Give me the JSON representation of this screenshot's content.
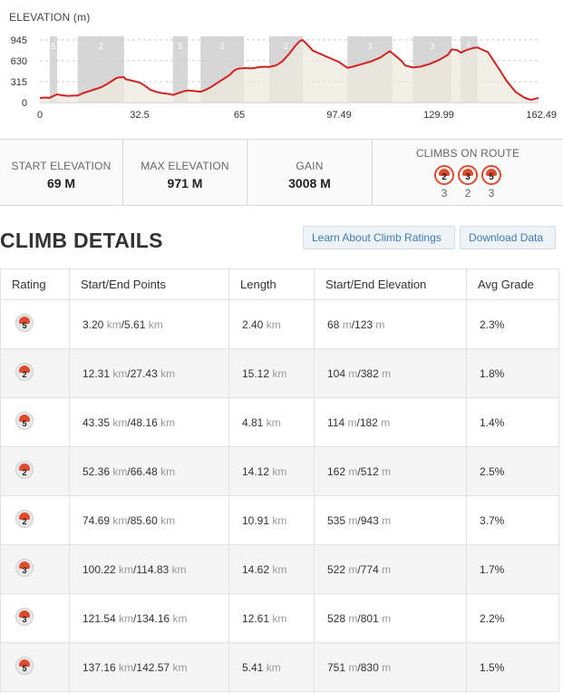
{
  "elevation_chart": {
    "title": "ELEVATION (m)",
    "chart_data": {
      "type": "area",
      "title": "ELEVATION (m)",
      "xlabel": "",
      "ylabel": "",
      "xlim": [
        0,
        162.49
      ],
      "ylim": [
        0,
        971
      ],
      "x_ticks": [
        "0",
        "32.5",
        "65",
        "97.49",
        "129.99",
        "162.49"
      ],
      "y_ticks": [
        "945",
        "630",
        "315",
        "0"
      ],
      "grid": true,
      "line_color": "#d22222",
      "fill_color": "#ece9dd",
      "x": [
        0,
        2,
        3.2,
        4,
        5.6,
        7,
        9,
        11,
        12.3,
        14,
        16,
        18,
        20,
        22,
        24,
        25,
        26,
        27.4,
        28,
        30,
        32.5,
        34,
        36,
        38,
        40,
        42,
        43.4,
        45,
        47,
        48.2,
        50,
        52.4,
        54,
        56,
        58,
        60,
        62,
        63,
        64,
        65,
        67,
        69,
        71,
        73,
        74.7,
        77,
        79,
        81,
        83,
        84.5,
        85.6,
        87,
        89,
        92,
        95,
        97.5,
        100.2,
        102,
        105,
        108,
        111,
        114,
        116,
        118,
        119,
        121.5,
        124,
        127,
        130,
        133,
        134.2,
        136,
        137.2,
        139,
        141,
        142.6,
        144,
        146,
        148,
        150,
        152,
        155,
        158,
        160,
        162.49
      ],
      "y": [
        69,
        75,
        68,
        90,
        123,
        110,
        100,
        105,
        104,
        140,
        170,
        200,
        230,
        280,
        340,
        370,
        380,
        382,
        350,
        330,
        300,
        260,
        190,
        160,
        140,
        130,
        114,
        140,
        170,
        182,
        175,
        162,
        190,
        240,
        300,
        360,
        420,
        470,
        500,
        512,
        520,
        515,
        530,
        540,
        535,
        560,
        620,
        720,
        840,
        920,
        943,
        880,
        780,
        720,
        660,
        610,
        522,
        540,
        580,
        620,
        680,
        774,
        700,
        620,
        560,
        528,
        540,
        580,
        640,
        720,
        801,
        790,
        751,
        790,
        820,
        830,
        800,
        760,
        620,
        480,
        330,
        160,
        70,
        40,
        69
      ],
      "climbs": [
        {
          "cat": "5",
          "start": 3.2,
          "end": 5.61
        },
        {
          "cat": "2",
          "start": 12.31,
          "end": 27.43
        },
        {
          "cat": "5",
          "start": 43.35,
          "end": 48.16
        },
        {
          "cat": "2",
          "start": 52.36,
          "end": 66.48
        },
        {
          "cat": "2",
          "start": 74.69,
          "end": 85.6
        },
        {
          "cat": "3",
          "start": 100.22,
          "end": 114.83
        },
        {
          "cat": "3",
          "start": 121.54,
          "end": 134.16
        },
        {
          "cat": "5",
          "start": 137.16,
          "end": 142.57
        }
      ]
    }
  },
  "stats": {
    "start_elevation_label": "START ELEVATION",
    "start_elevation_value": "69 M",
    "max_elevation_label": "MAX ELEVATION",
    "max_elevation_value": "971 M",
    "gain_label": "GAIN",
    "gain_value": "3008 M",
    "climbs_label": "CLIMBS ON ROUTE",
    "climbs": [
      {
        "cat": "2",
        "count": "3"
      },
      {
        "cat": "3",
        "count": "2"
      },
      {
        "cat": "5",
        "count": "3"
      }
    ]
  },
  "climb_details": {
    "title": "CLIMB DETAILS",
    "learn_button": "Learn About Climb Ratings",
    "download_button": "Download Data",
    "columns": [
      "Rating",
      "Start/End Points",
      "Length",
      "Start/End Elevation",
      "Avg Grade"
    ],
    "rows": [
      {
        "rating": "5",
        "start_km": "3.20",
        "end_km": "5.61",
        "length": "2.40",
        "start_m": "68",
        "end_m": "123",
        "grade": "2.3%"
      },
      {
        "rating": "2",
        "start_km": "12.31",
        "end_km": "27.43",
        "length": "15.12",
        "start_m": "104",
        "end_m": "382",
        "grade": "1.8%"
      },
      {
        "rating": "5",
        "start_km": "43.35",
        "end_km": "48.16",
        "length": "4.81",
        "start_m": "114",
        "end_m": "182",
        "grade": "1.4%"
      },
      {
        "rating": "2",
        "start_km": "52.36",
        "end_km": "66.48",
        "length": "14.12",
        "start_m": "162",
        "end_m": "512",
        "grade": "2.5%"
      },
      {
        "rating": "2",
        "start_km": "74.69",
        "end_km": "85.60",
        "length": "10.91",
        "start_m": "535",
        "end_m": "943",
        "grade": "3.7%"
      },
      {
        "rating": "3",
        "start_km": "100.22",
        "end_km": "114.83",
        "length": "14.62",
        "start_m": "522",
        "end_m": "774",
        "grade": "1.7%"
      },
      {
        "rating": "3",
        "start_km": "121.54",
        "end_km": "134.16",
        "length": "12.61",
        "start_m": "528",
        "end_m": "801",
        "grade": "2.2%"
      },
      {
        "rating": "5",
        "start_km": "137.16",
        "end_km": "142.57",
        "length": "5.41",
        "start_m": "751",
        "end_m": "830",
        "grade": "1.5%"
      }
    ],
    "unit_km": "km",
    "unit_m": "m"
  },
  "colors": {
    "accent_red": "#d22222",
    "badge_red": "#e04a2c",
    "link_blue": "#3d7bb8"
  },
  "icons": {
    "climb_rating": "climb-category-icon"
  }
}
